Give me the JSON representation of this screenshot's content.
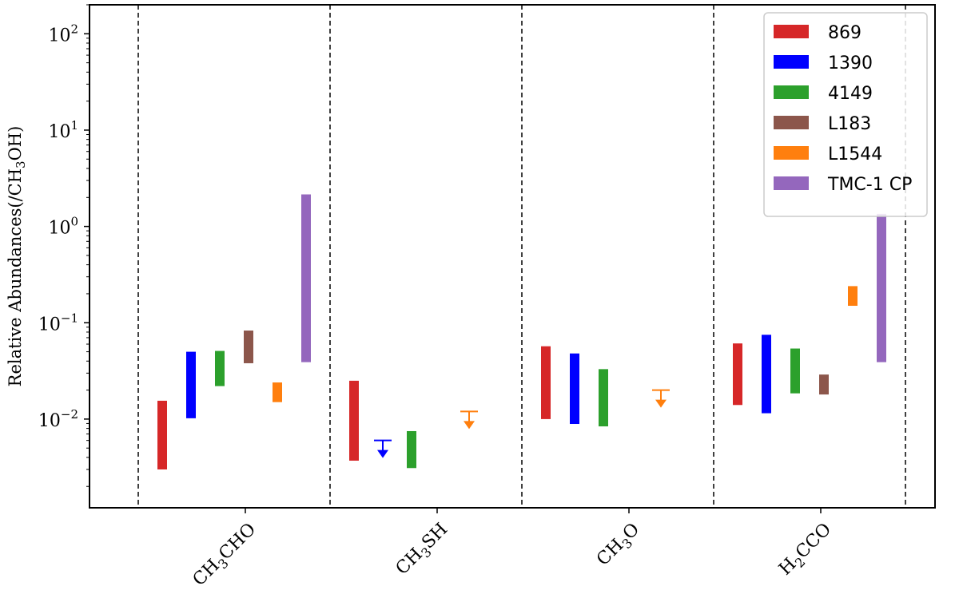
{
  "chart_data": {
    "type": "bar",
    "title": "",
    "xlabel": "",
    "ylabel": "Relative Abundances(/CH3OH)",
    "yscale": "log",
    "ylim": [
      0.0012,
      200
    ],
    "yticks": [
      {
        "value": 0.01,
        "base": "10",
        "exp": "−2"
      },
      {
        "value": 0.1,
        "base": "10",
        "exp": "−1"
      },
      {
        "value": 1,
        "base": "10",
        "exp": "0"
      },
      {
        "value": 10,
        "base": "10",
        "exp": "1"
      },
      {
        "value": 100,
        "base": "10",
        "exp": "2"
      }
    ],
    "grid": false,
    "legend_position": "top-right",
    "categories": [
      {
        "main": "CH",
        "sub": "3",
        "rest": "CHO"
      },
      {
        "main": "CH",
        "sub": "3",
        "rest": "SH"
      },
      {
        "main": "CH",
        "sub": "3",
        "rest": "O"
      },
      {
        "main": "H",
        "sub": "2",
        "rest": "CCO"
      }
    ],
    "series": [
      {
        "name": "869",
        "color": "#d62728",
        "ranges": [
          [
            0.003,
            0.0155
          ],
          [
            0.0037,
            0.025
          ],
          [
            0.01,
            0.057
          ],
          [
            0.014,
            0.061
          ]
        ],
        "upper_limits": [
          null,
          null,
          null,
          null
        ]
      },
      {
        "name": "1390",
        "color": "#0000ff",
        "ranges": [
          [
            0.0102,
            0.05
          ],
          null,
          [
            0.0089,
            0.048
          ],
          [
            0.0115,
            0.075
          ]
        ],
        "upper_limits": [
          null,
          0.006,
          null,
          null
        ]
      },
      {
        "name": "4149",
        "color": "#2ca02c",
        "ranges": [
          [
            0.022,
            0.051
          ],
          [
            0.0031,
            0.0075
          ],
          [
            0.0084,
            0.033
          ],
          [
            0.0185,
            0.054
          ]
        ],
        "upper_limits": [
          null,
          null,
          null,
          null
        ]
      },
      {
        "name": "L183",
        "color": "#8c564b",
        "ranges": [
          [
            0.038,
            0.083
          ],
          null,
          null,
          [
            0.018,
            0.029
          ]
        ],
        "upper_limits": [
          null,
          null,
          null,
          null
        ]
      },
      {
        "name": "L1544",
        "color": "#ff7f0e",
        "ranges": [
          [
            0.015,
            0.024
          ],
          null,
          null,
          [
            0.15,
            0.24
          ]
        ],
        "upper_limits": [
          null,
          0.012,
          0.02,
          null
        ]
      },
      {
        "name": "TMC-1 CP",
        "color": "#9467bd",
        "ranges": [
          [
            0.039,
            2.15
          ],
          null,
          null,
          [
            0.039,
            1.35
          ]
        ],
        "upper_limits": [
          null,
          null,
          null,
          null
        ]
      }
    ],
    "ylabel_parts": {
      "pre": "Relative Abundances(/CH",
      "sub": "3",
      "post": "OH)"
    }
  }
}
